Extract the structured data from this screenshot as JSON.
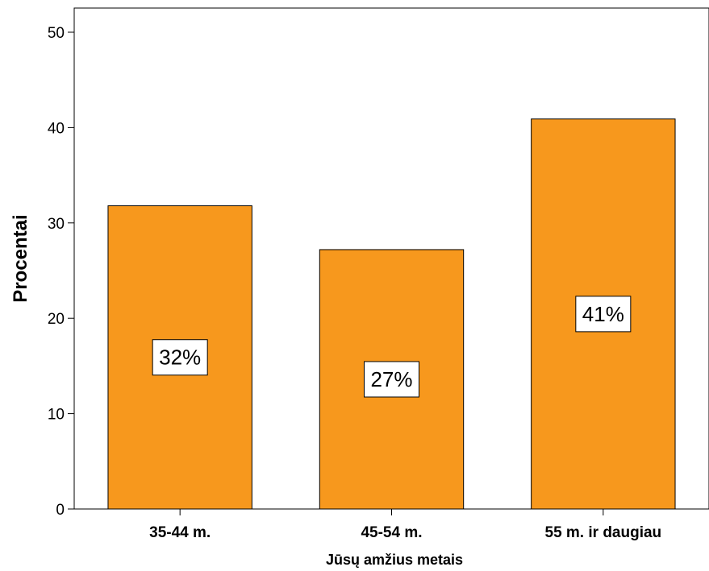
{
  "chart_data": {
    "type": "bar",
    "categories": [
      "35-44 m.",
      "45-54 m.",
      "55 m. ir daugiau"
    ],
    "values": [
      31.8,
      27.2,
      40.9
    ],
    "data_labels": [
      "32%",
      "27%",
      "41%"
    ],
    "xlabel": "Jūsų amžius metais",
    "ylabel": "Procentai",
    "ylim": [
      0,
      50
    ],
    "yticks": [
      0,
      10,
      20,
      30,
      40,
      50
    ],
    "bar_color": "#F7981D",
    "grid": false,
    "legend": "none"
  }
}
